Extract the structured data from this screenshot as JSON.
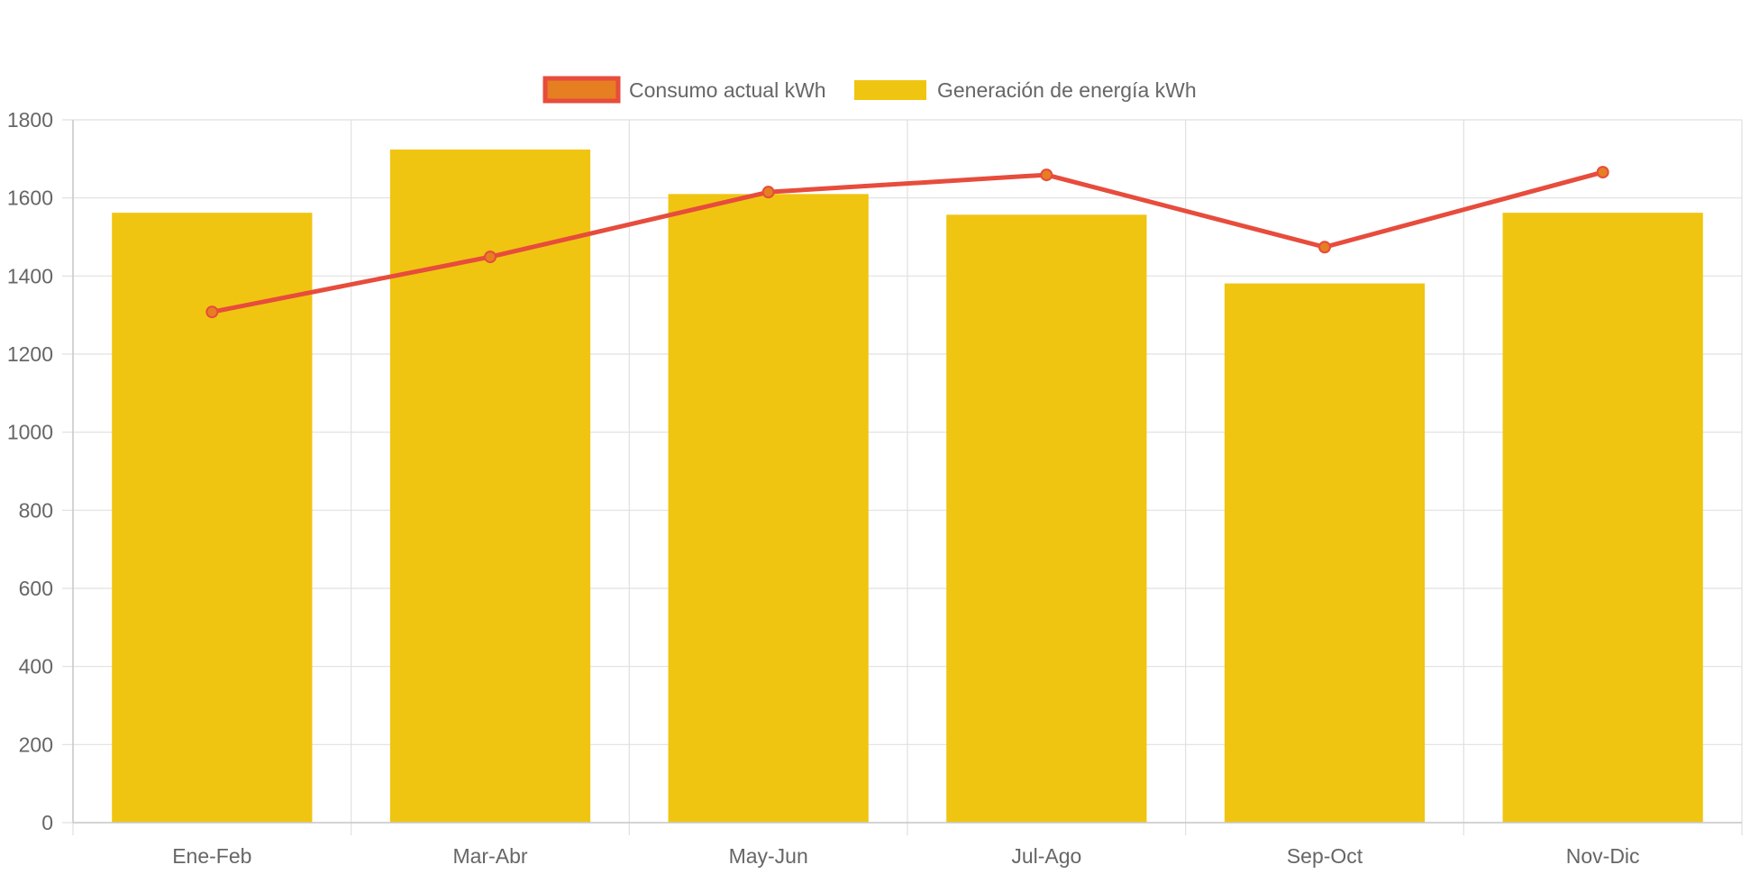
{
  "chart_data": {
    "type": "bar",
    "categories": [
      "Ene-Feb",
      "Mar-Abr",
      "May-Jun",
      "Jul-Ago",
      "Sep-Oct",
      "Nov-Dic"
    ],
    "series": [
      {
        "name": "Consumo actual kWh",
        "type": "line",
        "values": [
          1308,
          1449,
          1615,
          1659,
          1474,
          1666
        ]
      },
      {
        "name": "Generación de energía kWh",
        "type": "bar",
        "values": [
          1562,
          1724,
          1610,
          1557,
          1381,
          1562
        ]
      }
    ],
    "ylim": [
      0,
      1800
    ],
    "yticks": [
      0,
      200,
      400,
      600,
      800,
      1000,
      1200,
      1400,
      1600,
      1800
    ],
    "grid": true,
    "legend_position": "top-center",
    "colors": {
      "bar": "#f0c511",
      "line": "#e74c3c",
      "point_fill": "#e67e22",
      "legend_line_fill": "#e67e22",
      "grid": "#e0e0e0",
      "axis": "#c8c8c8",
      "text": "#666666"
    }
  }
}
